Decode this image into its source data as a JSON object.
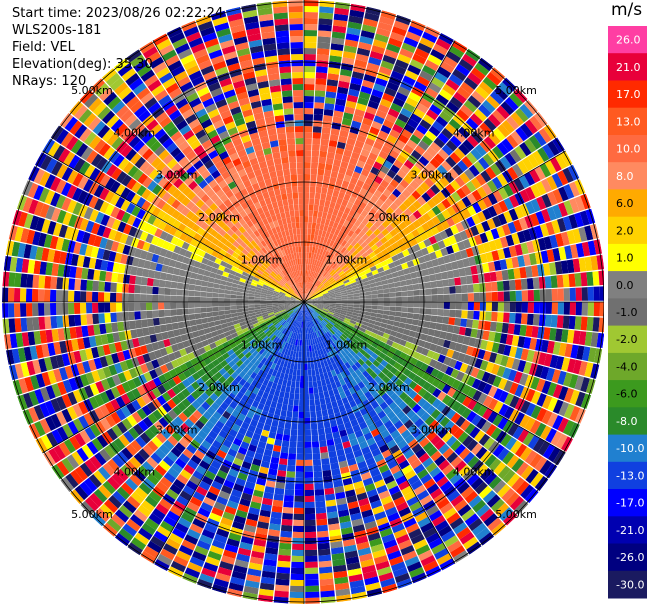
{
  "header": {
    "start_time": "Start time: 2023/08/26 02:22:24",
    "instrument": "WLS200s-181",
    "field": "Field: VEL",
    "elevation": "Elevation(deg): 35.30",
    "nrays": "NRays: 120"
  },
  "chart_data": {
    "type": "heatmap",
    "projection": "polar-ppi",
    "field": "VEL",
    "nrays": 120,
    "unit_label": "m/s",
    "range_ring_labels": [
      "1.00km",
      "2.00km",
      "3.00km",
      "4.00km",
      "5.00km"
    ],
    "range_rings_km": [
      1,
      2,
      3,
      4,
      5
    ],
    "max_range_km": 5.8,
    "colorbar": {
      "ticks": [
        "26.0",
        "21.0",
        "17.0",
        "13.0",
        "10.0",
        "8.0",
        "6.0",
        "2.0",
        "1.0",
        "0.0",
        "-1.0",
        "-2.0",
        "-4.0",
        "-6.0",
        "-8.0",
        "-10.0",
        "-13.0",
        "-17.0",
        "-21.0",
        "-26.0",
        "-30.0"
      ],
      "colors": [
        "#ff3ea3",
        "#e8003a",
        "#ff2a00",
        "#ff5a20",
        "#ff6a40",
        "#ff8a60",
        "#ffaa00",
        "#ffd200",
        "#ffff00",
        "#808080",
        "#707070",
        "#a0c832",
        "#6ea82a",
        "#3c9a1e",
        "#2a8a2a",
        "#2080d0",
        "#1040e0",
        "#0000ff",
        "#0000b0",
        "#000080",
        "#1a1a60"
      ]
    }
  }
}
